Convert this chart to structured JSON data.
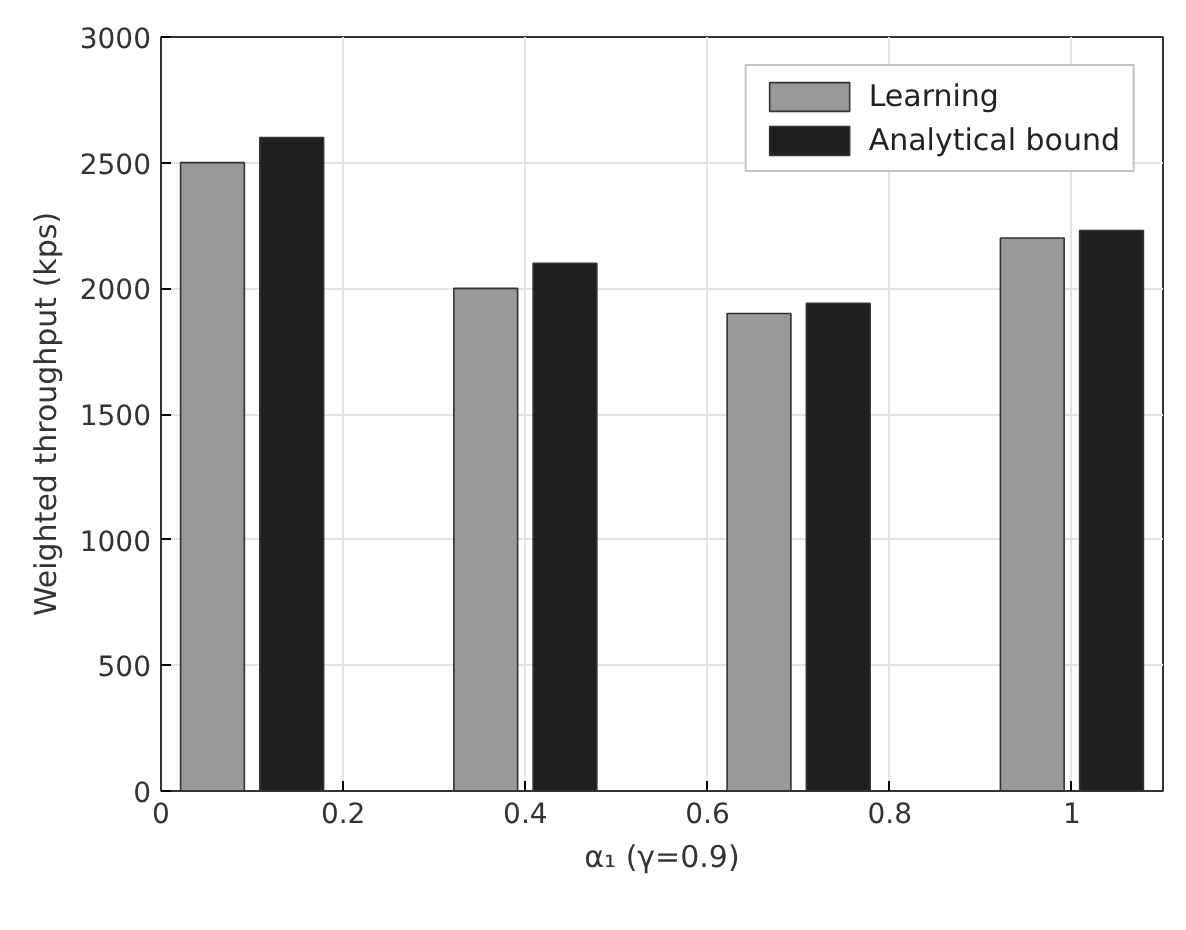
{
  "chart_data": {
    "type": "bar",
    "xlabel": "α₁ (γ=0.9)",
    "ylabel": "Weighted throughput (kps)",
    "x": [
      0.1,
      0.4,
      0.7,
      1.0
    ],
    "series": [
      {
        "name": "Learning",
        "color": "#999999",
        "values": [
          2500,
          2000,
          1900,
          2200
        ]
      },
      {
        "name": "Analytical bound",
        "color": "#1f1f1f",
        "values": [
          2600,
          2100,
          1940,
          2230
        ]
      }
    ],
    "xlim": [
      0,
      1.1
    ],
    "xticks": [
      0,
      0.2,
      0.4,
      0.6,
      0.8,
      1
    ],
    "ylim": [
      0,
      3000
    ],
    "yticks": [
      0,
      500,
      1000,
      1500,
      2000,
      2500,
      3000
    ],
    "grid": true,
    "legend": "top right"
  }
}
